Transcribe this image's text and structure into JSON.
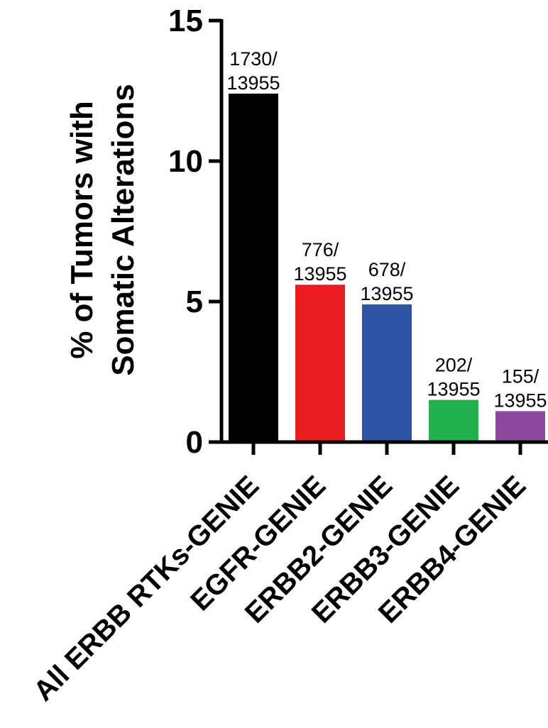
{
  "chart_data": {
    "type": "bar",
    "title": "",
    "ylabel": [
      "% of Tumors with",
      "Somatic Alterations"
    ],
    "xlabel": "",
    "ylim": [
      0,
      15
    ],
    "yticks": [
      0,
      5,
      10,
      15
    ],
    "grid": false,
    "categories": [
      "All ERBB RTKs-GENIE",
      "EGFR-GENIE",
      "ERBB2-GENIE",
      "ERBB3-GENIE",
      "ERBB4-GENIE"
    ],
    "values": [
      12.4,
      5.6,
      4.9,
      1.5,
      1.1
    ],
    "bar_labels": [
      [
        "1730/",
        "13955"
      ],
      [
        "776/",
        "13955"
      ],
      [
        "678/",
        "13955"
      ],
      [
        "202/",
        "13955"
      ],
      [
        "155/",
        "13955"
      ]
    ],
    "colors": [
      "#000000",
      "#ec1c24",
      "#2e55a4",
      "#22b14c",
      "#8b489e"
    ]
  }
}
